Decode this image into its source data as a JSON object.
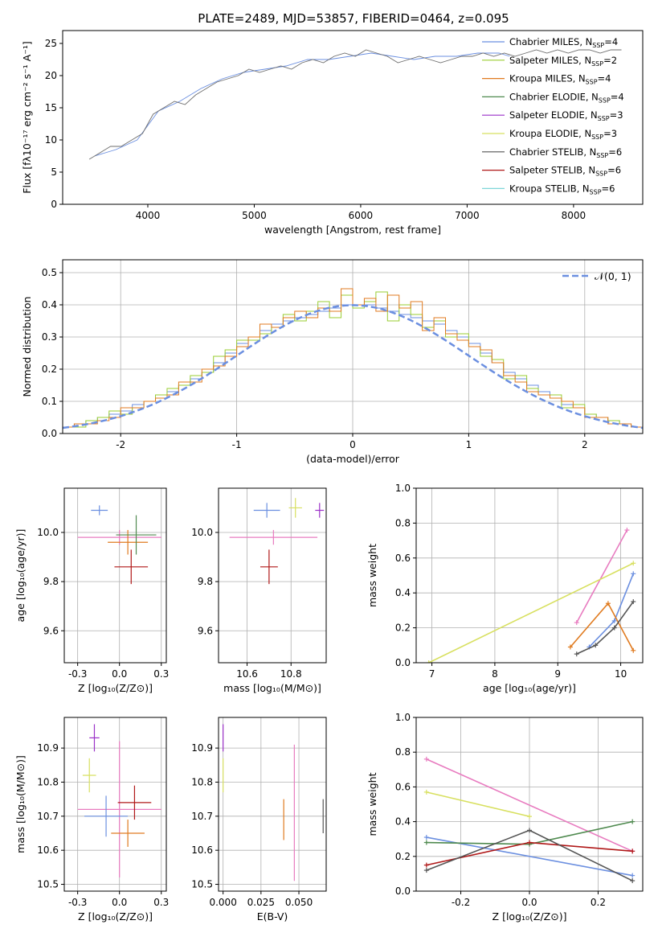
{
  "figure_title": "PLATE=2489, MJD=53857, FIBERID=0464, z=0.095",
  "colors": {
    "Chabrier MILES": "#6b8fe0",
    "Salpeter MILES": "#9acd32",
    "Kroupa MILES": "#e07b20",
    "Chabrier ELODIE": "#4f8a4f",
    "Salpeter ELODIE": "#9b30c8",
    "Kroupa ELODIE": "#d8e060",
    "Chabrier STELIB": "#555555",
    "Salpeter STELIB": "#b01818",
    "Kroupa STELIB": "#7fd6d8",
    "pink": "#e87cc0"
  },
  "chart_data": [
    {
      "id": "spectrum",
      "type": "line",
      "title": "PLATE=2489, MJD=53857, FIBERID=0464, z=0.095",
      "xlabel": "wavelength [Angstrom, rest frame]",
      "ylabel": "Flux [fλ10⁻¹⁷ erg cm⁻² s⁻¹ A⁻¹]",
      "xlim": [
        3200,
        8650
      ],
      "ylim": [
        0,
        27
      ],
      "xticks": [
        4000,
        5000,
        6000,
        7000,
        8000
      ],
      "yticks": [
        0,
        5,
        10,
        15,
        20,
        25
      ],
      "legend_position": "top-right",
      "legend": [
        {
          "label": "Chabrier MILES, N",
          "sub": "SSP",
          "tail": "=4",
          "color_key": "Chabrier MILES"
        },
        {
          "label": "Salpeter MILES, N",
          "sub": "SSP",
          "tail": "=2",
          "color_key": "Salpeter MILES"
        },
        {
          "label": "Kroupa MILES, N",
          "sub": "SSP",
          "tail": "=4",
          "color_key": "Kroupa MILES"
        },
        {
          "label": "Chabrier ELODIE, N",
          "sub": "SSP",
          "tail": "=4",
          "color_key": "Chabrier ELODIE"
        },
        {
          "label": "Salpeter ELODIE, N",
          "sub": "SSP",
          "tail": "=3",
          "color_key": "Salpeter ELODIE"
        },
        {
          "label": "Kroupa ELODIE, N",
          "sub": "SSP",
          "tail": "=3",
          "color_key": "Kroupa ELODIE"
        },
        {
          "label": "Chabrier STELIB, N",
          "sub": "SSP",
          "tail": "=6",
          "color_key": "Chabrier STELIB"
        },
        {
          "label": "Salpeter STELIB, N",
          "sub": "SSP",
          "tail": "=6",
          "color_key": "Salpeter STELIB"
        },
        {
          "label": "Kroupa STELIB, N",
          "sub": "SSP",
          "tail": "=6",
          "color_key": "Kroupa STELIB"
        }
      ],
      "series": [
        {
          "name": "Chabrier MILES",
          "x": [
            3500,
            3700,
            3900,
            4100,
            4300,
            4500,
            4700,
            4900,
            5100,
            5300,
            5500,
            5700,
            5900,
            6100,
            6300,
            6500,
            6700,
            6900,
            7100,
            7300,
            7400
          ],
          "y": [
            7.5,
            8.5,
            10,
            14.5,
            16,
            18,
            19.5,
            20.5,
            21,
            21.5,
            22.5,
            22.5,
            23,
            23.5,
            23,
            22.5,
            23,
            23,
            23.5,
            23.5,
            23
          ]
        },
        {
          "name": "data",
          "x": [
            3450,
            3550,
            3650,
            3750,
            3850,
            3950,
            4050,
            4150,
            4250,
            4350,
            4450,
            4550,
            4650,
            4750,
            4850,
            4950,
            5050,
            5150,
            5250,
            5350,
            5450,
            5550,
            5650,
            5750,
            5850,
            5950,
            6050,
            6150,
            6250,
            6350,
            6450,
            6550,
            6650,
            6750,
            6850,
            6950,
            7050,
            7150,
            7250,
            7350,
            7450,
            7550,
            7650,
            7750,
            7850,
            7950,
            8050,
            8150,
            8250,
            8350,
            8450
          ],
          "y": [
            7,
            8,
            9,
            9,
            10,
            11,
            14,
            15,
            16,
            15.5,
            17,
            18,
            19,
            19.5,
            20,
            21,
            20.5,
            21,
            21.5,
            21,
            22,
            22.5,
            22,
            23,
            23.5,
            23,
            24,
            23.5,
            23,
            22,
            22.5,
            23,
            22.5,
            22,
            22.5,
            23,
            23,
            23.5,
            23,
            23.5,
            23,
            23.5,
            24,
            23.5,
            24,
            23.5,
            24,
            24,
            23.5,
            24,
            24
          ]
        }
      ]
    },
    {
      "id": "residuals",
      "type": "line",
      "xlabel": "(data-model)/error",
      "ylabel": "Normed distribution",
      "xlim": [
        -2.5,
        2.5
      ],
      "ylim": [
        0,
        0.54
      ],
      "xticks": [
        -2,
        -1,
        0,
        1,
        2
      ],
      "yticks": [
        0.0,
        0.1,
        0.2,
        0.3,
        0.4,
        0.5
      ],
      "grid": true,
      "legend_position": "top-right",
      "legend": [
        {
          "label": "𝒩(0, 1)",
          "color_key": "Chabrier MILES"
        }
      ],
      "bin_edges": [
        -2.5,
        -2.4,
        -2.3,
        -2.2,
        -2.1,
        -2.0,
        -1.9,
        -1.8,
        -1.7,
        -1.6,
        -1.5,
        -1.4,
        -1.3,
        -1.2,
        -1.1,
        -1.0,
        -0.9,
        -0.8,
        -0.7,
        -0.6,
        -0.5,
        -0.4,
        -0.3,
        -0.2,
        -0.1,
        0.0,
        0.1,
        0.2,
        0.3,
        0.4,
        0.5,
        0.6,
        0.7,
        0.8,
        0.9,
        1.0,
        1.1,
        1.2,
        1.3,
        1.4,
        1.5,
        1.6,
        1.7,
        1.8,
        1.9,
        2.0,
        2.1,
        2.2,
        2.3,
        2.4,
        2.5
      ],
      "series": [
        {
          "name": "Chabrier MILES",
          "values": [
            0.02,
            0.03,
            0.04,
            0.05,
            0.06,
            0.07,
            0.09,
            0.1,
            0.12,
            0.13,
            0.15,
            0.17,
            0.19,
            0.22,
            0.25,
            0.28,
            0.3,
            0.32,
            0.34,
            0.35,
            0.36,
            0.37,
            0.38,
            0.39,
            0.4,
            0.4,
            0.4,
            0.39,
            0.38,
            0.37,
            0.36,
            0.35,
            0.34,
            0.32,
            0.3,
            0.28,
            0.25,
            0.22,
            0.19,
            0.17,
            0.15,
            0.13,
            0.11,
            0.09,
            0.08,
            0.06,
            0.05,
            0.04,
            0.03,
            0.02
          ]
        },
        {
          "name": "Salpeter MILES",
          "values": [
            0.02,
            0.02,
            0.04,
            0.05,
            0.07,
            0.06,
            0.08,
            0.1,
            0.12,
            0.14,
            0.15,
            0.18,
            0.19,
            0.24,
            0.26,
            0.29,
            0.29,
            0.31,
            0.33,
            0.37,
            0.35,
            0.38,
            0.41,
            0.36,
            0.43,
            0.39,
            0.41,
            0.44,
            0.35,
            0.4,
            0.37,
            0.33,
            0.35,
            0.3,
            0.31,
            0.27,
            0.24,
            0.23,
            0.17,
            0.18,
            0.14,
            0.12,
            0.12,
            0.08,
            0.09,
            0.06,
            0.05,
            0.04,
            0.03,
            0.02
          ]
        },
        {
          "name": "Kroupa MILES",
          "values": [
            0.02,
            0.03,
            0.03,
            0.04,
            0.05,
            0.08,
            0.08,
            0.1,
            0.11,
            0.12,
            0.16,
            0.16,
            0.2,
            0.21,
            0.24,
            0.27,
            0.3,
            0.34,
            0.33,
            0.36,
            0.38,
            0.36,
            0.39,
            0.38,
            0.45,
            0.4,
            0.42,
            0.38,
            0.43,
            0.39,
            0.41,
            0.32,
            0.36,
            0.31,
            0.29,
            0.27,
            0.26,
            0.22,
            0.18,
            0.16,
            0.13,
            0.12,
            0.11,
            0.1,
            0.08,
            0.05,
            0.05,
            0.03,
            0.03,
            0.02
          ]
        }
      ]
    },
    {
      "id": "age-vs-Z",
      "type": "scatter",
      "xlabel": "Z [log₁₀(Z/Z⊙)]",
      "ylabel": "age  [log₁₀(age/yr)]",
      "xlim": [
        -0.33,
        0.28
      ],
      "ylim": [
        9.47,
        10.18
      ],
      "xticks": [
        -0.25,
        0.0,
        0.25
      ],
      "yticks": [
        9.6,
        9.8,
        10.0
      ],
      "grid": true,
      "points": [
        {
          "x": 0.0,
          "y": 9.98,
          "xerr": 0.25,
          "yerr": 0.03,
          "color_key": "pink"
        },
        {
          "x": -0.12,
          "y": 10.09,
          "xerr": 0.05,
          "yerr": 0.02,
          "color_key": "Chabrier MILES"
        },
        {
          "x": 0.05,
          "y": 9.96,
          "xerr": 0.12,
          "yerr": 0.05,
          "color_key": "Kroupa MILES"
        },
        {
          "x": 0.07,
          "y": 9.86,
          "xerr": 0.1,
          "yerr": 0.07,
          "color_key": "Salpeter STELIB"
        },
        {
          "x": 0.1,
          "y": 9.99,
          "xerr": 0.12,
          "yerr": 0.08,
          "color_key": "Chabrier ELODIE"
        }
      ]
    },
    {
      "id": "age-vs-mass",
      "type": "scatter",
      "xlabel": "mass [log₁₀(M/M⊙)]",
      "xlim": [
        10.47,
        10.96
      ],
      "ylim": [
        9.47,
        10.18
      ],
      "xticks": [
        10.6,
        10.8
      ],
      "yticks": [
        9.6,
        9.8,
        10.0
      ],
      "grid": true,
      "points": [
        {
          "x": 10.72,
          "y": 9.98,
          "xerr": 0.2,
          "yerr": 0.03,
          "color_key": "pink"
        },
        {
          "x": 10.69,
          "y": 10.09,
          "xerr": 0.06,
          "yerr": 0.03,
          "color_key": "Chabrier MILES"
        },
        {
          "x": 10.82,
          "y": 10.1,
          "xerr": 0.03,
          "yerr": 0.04,
          "color_key": "Kroupa ELODIE"
        },
        {
          "x": 10.93,
          "y": 10.09,
          "xerr": 0.02,
          "yerr": 0.03,
          "color_key": "Salpeter ELODIE"
        },
        {
          "x": 10.7,
          "y": 9.86,
          "xerr": 0.04,
          "yerr": 0.07,
          "color_key": "Salpeter STELIB"
        }
      ]
    },
    {
      "id": "weight-vs-age",
      "type": "line",
      "xlabel": "age  [log₁₀(age/yr)]",
      "ylabel": "mass weight",
      "xlim": [
        6.75,
        10.35
      ],
      "ylim": [
        0.0,
        1.0
      ],
      "xticks": [
        7,
        8,
        9,
        10
      ],
      "yticks": [
        0.0,
        0.2,
        0.4,
        0.6,
        0.8,
        1.0
      ],
      "grid": true,
      "series": [
        {
          "name": "pink",
          "x": [
            9.3,
            10.1
          ],
          "y": [
            0.23,
            0.76
          ]
        },
        {
          "name": "Kroupa ELODIE",
          "x": [
            6.95,
            10.2
          ],
          "y": [
            0.0,
            0.57
          ]
        },
        {
          "name": "Chabrier MILES",
          "x": [
            9.5,
            9.9,
            10.2
          ],
          "y": [
            0.09,
            0.24,
            0.51
          ]
        },
        {
          "name": "Kroupa MILES",
          "x": [
            9.2,
            9.8,
            10.2
          ],
          "y": [
            0.09,
            0.34,
            0.07
          ]
        },
        {
          "name": "Chabrier STELIB",
          "x": [
            9.3,
            9.6,
            9.9,
            10.2
          ],
          "y": [
            0.05,
            0.1,
            0.2,
            0.35
          ]
        }
      ]
    },
    {
      "id": "mass-vs-Z",
      "type": "scatter",
      "xlabel": "Z [log₁₀(Z/Z⊙)]",
      "ylabel": "mass [log₁₀(M/M⊙)]",
      "xlim": [
        -0.33,
        0.28
      ],
      "ylim": [
        10.48,
        10.99
      ],
      "xticks": [
        -0.25,
        0.0,
        0.25
      ],
      "yticks": [
        10.5,
        10.6,
        10.7,
        10.8,
        10.9
      ],
      "grid": true,
      "points": [
        {
          "x": -0.15,
          "y": 10.93,
          "xerr": 0.03,
          "yerr": 0.04,
          "color_key": "Salpeter ELODIE"
        },
        {
          "x": -0.18,
          "y": 10.82,
          "xerr": 0.04,
          "yerr": 0.05,
          "color_key": "Kroupa ELODIE"
        },
        {
          "x": 0.0,
          "y": 10.72,
          "xerr": 0.25,
          "yerr": 0.2,
          "color_key": "pink"
        },
        {
          "x": -0.08,
          "y": 10.7,
          "xerr": 0.13,
          "yerr": 0.06,
          "color_key": "Chabrier MILES"
        },
        {
          "x": 0.05,
          "y": 10.65,
          "xerr": 0.1,
          "yerr": 0.04,
          "color_key": "Kroupa MILES"
        },
        {
          "x": 0.09,
          "y": 10.74,
          "xerr": 0.1,
          "yerr": 0.05,
          "color_key": "Salpeter STELIB"
        }
      ]
    },
    {
      "id": "mass-vs-ebv",
      "type": "scatter",
      "xlabel": "E(B-V)",
      "xlim": [
        -0.003,
        0.068
      ],
      "ylim": [
        10.48,
        10.99
      ],
      "xticks": [
        0.0,
        0.025,
        0.05
      ],
      "yticks": [
        10.5,
        10.6,
        10.7,
        10.8,
        10.9
      ],
      "grid": true,
      "points": [
        {
          "x": 0.0,
          "y": 10.93,
          "yerr": 0.04,
          "color_key": "Salpeter ELODIE"
        },
        {
          "x": 0.0,
          "y": 10.82,
          "yerr": 0.05,
          "color_key": "Kroupa ELODIE"
        },
        {
          "x": 0.04,
          "y": 10.69,
          "yerr": 0.06,
          "color_key": "Kroupa MILES"
        },
        {
          "x": 0.047,
          "y": 10.71,
          "yerr": 0.2,
          "color_key": "pink"
        },
        {
          "x": 0.066,
          "y": 10.7,
          "yerr": 0.05,
          "color_key": "Chabrier STELIB"
        }
      ]
    },
    {
      "id": "weight-vs-Z",
      "type": "line",
      "xlabel": "Z [log₁₀(Z/Z⊙)]",
      "ylabel": "mass weight",
      "xlim": [
        -0.33,
        0.33
      ],
      "ylim": [
        0.0,
        1.0
      ],
      "xticks": [
        -0.2,
        0.0,
        0.2
      ],
      "yticks": [
        0.0,
        0.2,
        0.4,
        0.6,
        0.8,
        1.0
      ],
      "grid": true,
      "series": [
        {
          "name": "pink",
          "x": [
            -0.3,
            0.3
          ],
          "y": [
            0.76,
            0.23
          ]
        },
        {
          "name": "Kroupa ELODIE",
          "x": [
            -0.3,
            0.0
          ],
          "y": [
            0.57,
            0.43
          ]
        },
        {
          "name": "Chabrier MILES",
          "x": [
            -0.3,
            0.3
          ],
          "y": [
            0.31,
            0.09
          ]
        },
        {
          "name": "Chabrier ELODIE",
          "x": [
            -0.3,
            0.0,
            0.3
          ],
          "y": [
            0.28,
            0.27,
            0.4
          ]
        },
        {
          "name": "Salpeter STELIB",
          "x": [
            -0.3,
            0.0,
            0.3
          ],
          "y": [
            0.15,
            0.28,
            0.23
          ]
        },
        {
          "name": "Chabrier STELIB",
          "x": [
            -0.3,
            0.0,
            0.3
          ],
          "y": [
            0.12,
            0.35,
            0.06
          ]
        }
      ]
    }
  ]
}
